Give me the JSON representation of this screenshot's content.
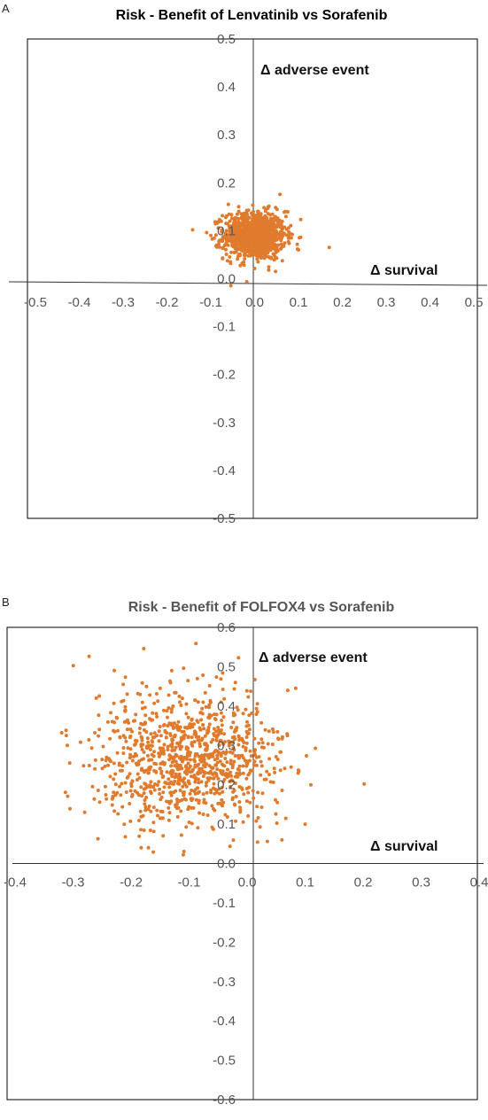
{
  "panels": [
    {
      "label": "A"
    },
    {
      "label": "B"
    }
  ],
  "colors": {
    "points": "#e07b2e",
    "title_a": "#000000",
    "title_b": "#555555",
    "axis": "#333333",
    "frame": "#000000"
  },
  "chart_data": [
    {
      "type": "scatter",
      "title": "Risk - Benefit of Lenvatinib vs Sorafenib",
      "xlabel": "Δ survival",
      "ylabel": "Δ adverse event",
      "xlim": [
        -0.5,
        0.5
      ],
      "ylim": [
        -0.5,
        0.5
      ],
      "xticks": [
        "-0.5",
        "-0.4",
        "-0.3",
        "-0.2",
        "-0.1",
        "0.0",
        "0.1",
        "0.2",
        "0.3",
        "0.4",
        "0.5"
      ],
      "yticks": [
        "0.5",
        "0.4",
        "0.3",
        "0.2",
        "0.1",
        "0.0",
        "-0.1",
        "-0.2",
        "-0.3",
        "-0.4",
        "-0.5"
      ],
      "grid": false,
      "cloud": {
        "x_mean": 0.0,
        "x_sd": 0.035,
        "y_mean": 0.09,
        "y_sd": 0.025,
        "n": 1000
      },
      "points": [
        [
          0.17,
          0.065
        ],
        [
          -0.1,
          0.09
        ],
        [
          0.1,
          0.06
        ],
        [
          -0.06,
          0.155
        ],
        [
          0.07,
          0.14
        ]
      ]
    },
    {
      "type": "scatter",
      "title": "Risk - Benefit of FOLFOX4 vs Sorafenib",
      "xlabel": "Δ survival",
      "ylabel": "Δ adverse event",
      "xlim": [
        -0.4,
        0.4
      ],
      "ylim": [
        -0.6,
        0.6
      ],
      "xticks": [
        "-0.4",
        "-0.3",
        "-0.2",
        "-0.1",
        "0.0",
        "0.1",
        "0.2",
        "0.3",
        "0.4"
      ],
      "yticks": [
        "0.6",
        "0.5",
        "0.4",
        "0.3",
        "0.2",
        "0.1",
        "0.0",
        "-0.1",
        "-0.2",
        "-0.3",
        "-0.4",
        "-0.5",
        "-0.6"
      ],
      "grid": false,
      "cloud": {
        "x_mean": -0.1,
        "x_sd": 0.08,
        "y_mean": 0.27,
        "y_sd": 0.085,
        "n": 1000
      },
      "points": [
        [
          -0.31,
          0.3
        ],
        [
          -0.28,
          0.13
        ],
        [
          0.1,
          0.1
        ],
        [
          0.11,
          0.2
        ],
        [
          -0.17,
          0.04
        ],
        [
          -0.13,
          0.49
        ],
        [
          0.07,
          0.44
        ],
        [
          -0.26,
          0.42
        ],
        [
          0.06,
          0.06
        ]
      ]
    }
  ]
}
